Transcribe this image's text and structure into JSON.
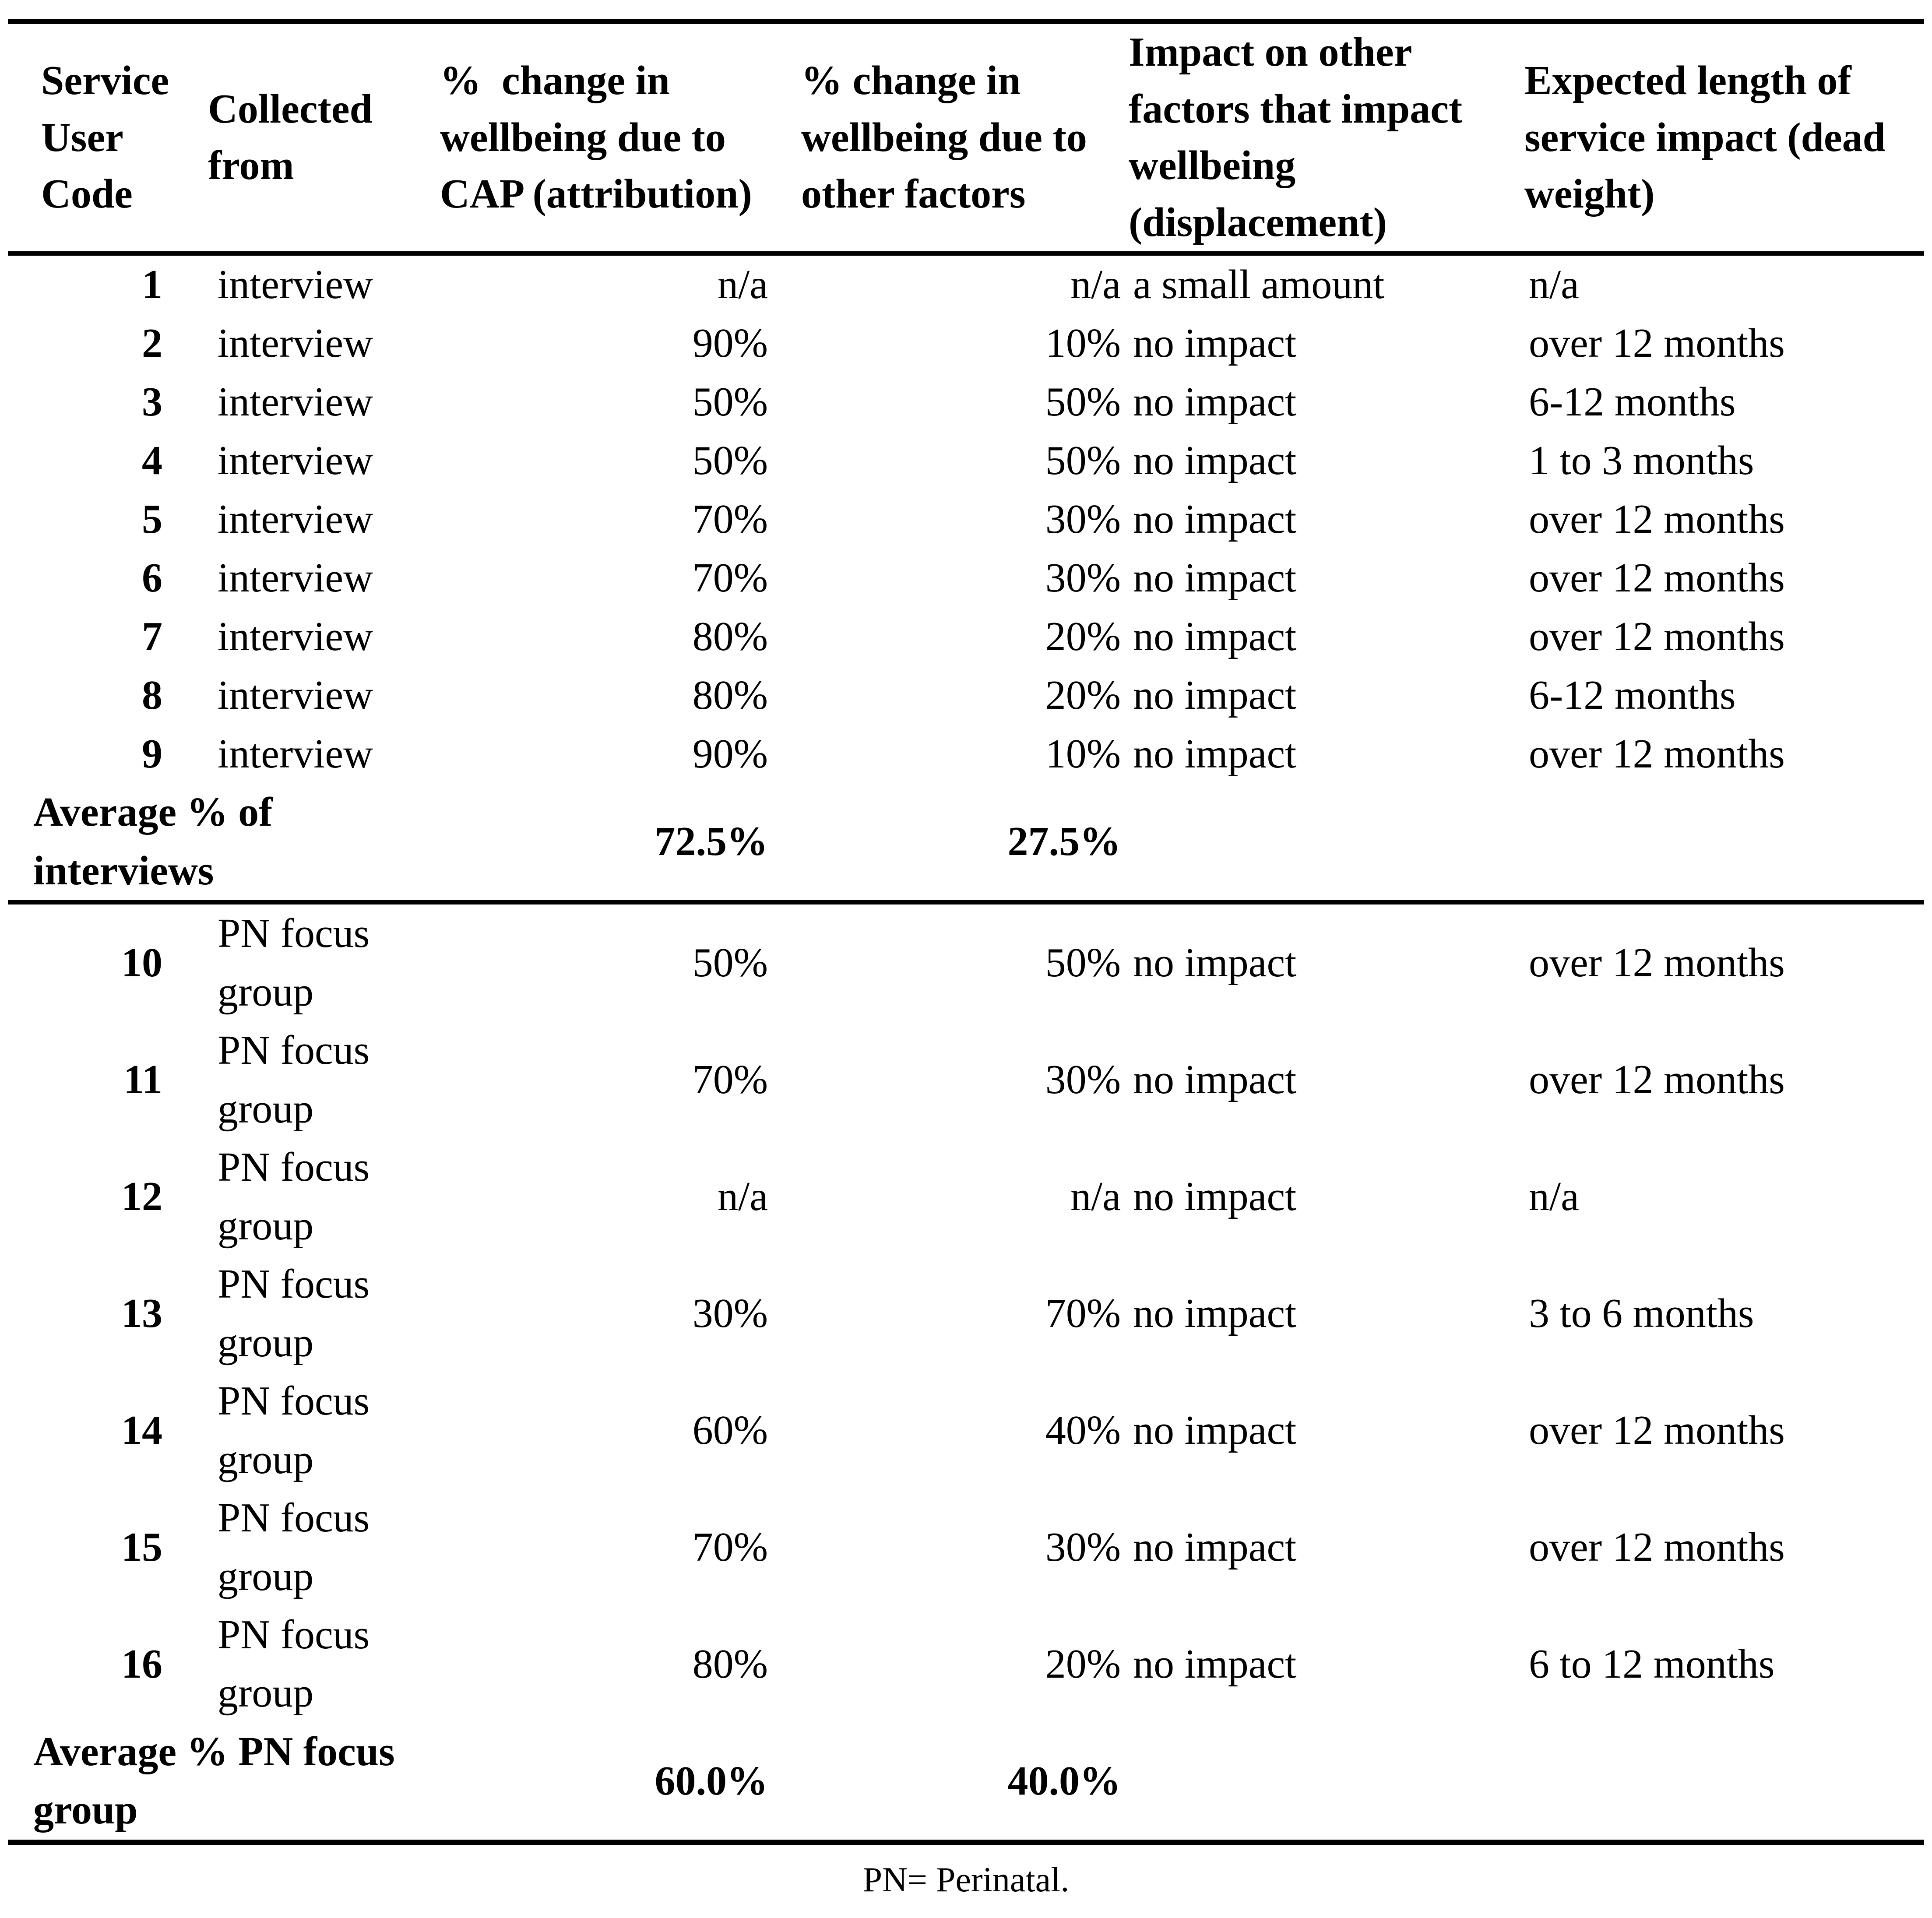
{
  "colors": {
    "background": "#ffffff",
    "text": "#000000",
    "rule": "#000000"
  },
  "table": {
    "headers": [
      {
        "lines": [
          "Service",
          "User",
          "Code"
        ]
      },
      {
        "lines": [
          "Collected",
          "from"
        ]
      },
      {
        "lines": [
          "%  change in",
          "wellbeing due to",
          "CAP (attribution)"
        ]
      },
      {
        "lines": [
          "% change in",
          "wellbeing due to",
          "other factors"
        ]
      },
      {
        "lines": [
          "Impact on other",
          "factors that impact",
          "wellbeing",
          "(displacement)"
        ]
      },
      {
        "lines": [
          "Expected length of",
          "service impact (dead",
          "weight)"
        ]
      }
    ],
    "interview_rows": [
      {
        "code": "1",
        "collected_from": "interview",
        "cap_pct": "n/a",
        "other_pct": "n/a",
        "displacement": "a small amount",
        "length": "n/a"
      },
      {
        "code": "2",
        "collected_from": "interview",
        "cap_pct": "90%",
        "other_pct": "10%",
        "displacement": "no impact",
        "length": "over 12 months"
      },
      {
        "code": "3",
        "collected_from": "interview",
        "cap_pct": "50%",
        "other_pct": "50%",
        "displacement": "no impact",
        "length": "6-12 months"
      },
      {
        "code": "4",
        "collected_from": "interview",
        "cap_pct": "50%",
        "other_pct": "50%",
        "displacement": "no impact",
        "length": "1 to 3 months"
      },
      {
        "code": "5",
        "collected_from": "interview",
        "cap_pct": "70%",
        "other_pct": "30%",
        "displacement": "no impact",
        "length": "over 12 months"
      },
      {
        "code": "6",
        "collected_from": "interview",
        "cap_pct": "70%",
        "other_pct": "30%",
        "displacement": "no impact",
        "length": "over 12 months"
      },
      {
        "code": "7",
        "collected_from": "interview",
        "cap_pct": "80%",
        "other_pct": "20%",
        "displacement": "no impact",
        "length": "over 12 months"
      },
      {
        "code": "8",
        "collected_from": "interview",
        "cap_pct": "80%",
        "other_pct": "20%",
        "displacement": "no impact",
        "length": "6-12 months"
      },
      {
        "code": "9",
        "collected_from": "interview",
        "cap_pct": "90%",
        "other_pct": "10%",
        "displacement": "no impact",
        "length": "over 12 months"
      }
    ],
    "interview_average": {
      "label_lines": [
        "Average % of",
        "interviews"
      ],
      "cap_pct": "72.5%",
      "other_pct": "27.5%"
    },
    "focus_rows": [
      {
        "code": "10",
        "collected_from": [
          "PN focus",
          "group"
        ],
        "cap_pct": "50%",
        "other_pct": "50%",
        "displacement": "no impact",
        "length": "over 12 months"
      },
      {
        "code": "11",
        "collected_from": [
          "PN focus",
          "group"
        ],
        "cap_pct": "70%",
        "other_pct": "30%",
        "displacement": "no impact",
        "length": "over 12 months"
      },
      {
        "code": "12",
        "collected_from": [
          "PN focus",
          "group"
        ],
        "cap_pct": "n/a",
        "other_pct": "n/a",
        "displacement": "no impact",
        "length": "n/a"
      },
      {
        "code": "13",
        "collected_from": [
          "PN focus",
          "group"
        ],
        "cap_pct": "30%",
        "other_pct": "70%",
        "displacement": "no impact",
        "length": "3 to 6 months"
      },
      {
        "code": "14",
        "collected_from": [
          "PN focus",
          "group"
        ],
        "cap_pct": "60%",
        "other_pct": "40%",
        "displacement": "no impact",
        "length": "over 12 months"
      },
      {
        "code": "15",
        "collected_from": [
          "PN focus",
          "group"
        ],
        "cap_pct": "70%",
        "other_pct": "30%",
        "displacement": "no impact",
        "length": "over 12 months"
      },
      {
        "code": "16",
        "collected_from": [
          "PN focus",
          "group"
        ],
        "cap_pct": "80%",
        "other_pct": "20%",
        "displacement": "no impact",
        "length": "6 to 12 months"
      }
    ],
    "focus_average": {
      "label_lines": [
        "Average % PN focus",
        "group"
      ],
      "cap_pct": "60.0%",
      "other_pct": "40.0%"
    },
    "footnote": "PN= Perinatal."
  }
}
